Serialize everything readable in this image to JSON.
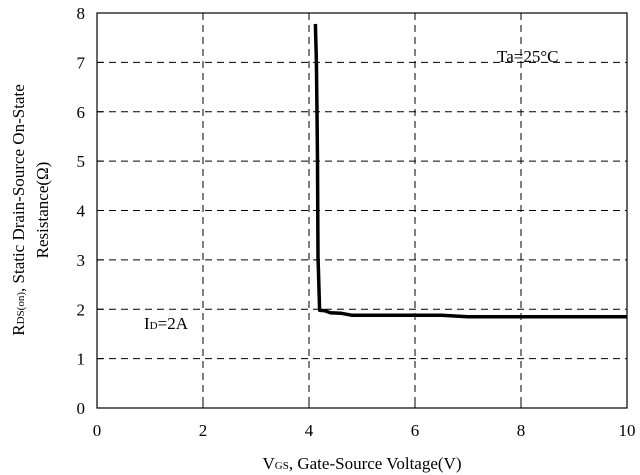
{
  "chart_data": {
    "type": "line",
    "xlabel": "VGS, Gate-Source Voltage(V)",
    "xlabel_parts": {
      "main": "V",
      "sub": "GS",
      "rest": ", Gate-Source Voltage(V)"
    },
    "ylabel": "RDS(on), Static Drain-Source On-State Resistance(Ω)",
    "ylabel_parts": {
      "main": "R",
      "sub": "DS(on)",
      "rest": ", Static Drain-Source On-State",
      "line2": "Resistance(Ω)"
    },
    "xlim": [
      0,
      10
    ],
    "ylim": [
      0,
      8
    ],
    "xticks": [
      0,
      2,
      4,
      6,
      8,
      10
    ],
    "yticks": [
      0,
      1,
      2,
      3,
      4,
      5,
      6,
      7,
      8
    ],
    "grid": true,
    "annotations": {
      "temp": {
        "text": "Ta=25°C",
        "position": "top-right"
      },
      "current": {
        "main": "I",
        "sub": "D",
        "rest": "=2A",
        "position": "lower-left"
      }
    },
    "series": [
      {
        "x": [
          4.12,
          4.14,
          4.15,
          4.16,
          4.17,
          4.18,
          4.2,
          4.3,
          4.4,
          4.6,
          4.8,
          5.5,
          6.0,
          6.5,
          7.0,
          8.0,
          9.0,
          10.0
        ],
        "y": [
          7.78,
          7.0,
          6.0,
          5.0,
          3.05,
          2.75,
          1.98,
          1.97,
          1.93,
          1.92,
          1.88,
          1.88,
          1.88,
          1.88,
          1.85,
          1.85,
          1.85,
          1.85
        ]
      }
    ]
  }
}
